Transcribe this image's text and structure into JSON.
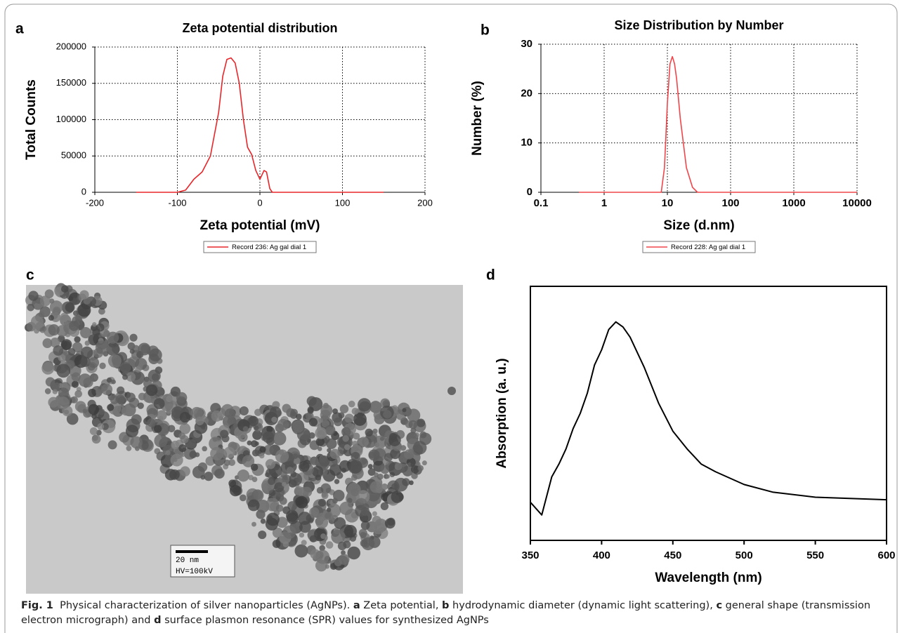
{
  "figure": {
    "panel_labels": [
      "a",
      "b",
      "c",
      "d"
    ],
    "micrograph": {
      "scale_bar": "20 nm",
      "voltage": "HV=100kV"
    },
    "caption": {
      "figure_number": "Fig. 1",
      "parts": [
        "Physical characterization of silver nanoparticles (AgNPs).",
        "Zeta potential,",
        "hydrodynamic diameter (dynamic light scattering),",
        "general shape (transmission electron micrograph) and",
        "surface plasmon resonance (SPR) values for synthesized AgNPs"
      ]
    }
  },
  "chart_data": [
    {
      "type": "line",
      "title": "Zeta potential distribution",
      "xlabel": "Zeta potential (mV)",
      "ylabel": "Total Counts",
      "x": [
        -150,
        -100,
        -90,
        -80,
        -70,
        -60,
        -50,
        -45,
        -40,
        -35,
        -30,
        -25,
        -20,
        -15,
        -10,
        -5,
        0,
        5,
        8,
        12,
        15,
        100,
        150
      ],
      "series": [
        {
          "name": "Record 236: Ag gal dial 1",
          "color": "#e8262a",
          "values": [
            0,
            0,
            3000,
            18000,
            28000,
            50000,
            110000,
            160000,
            183000,
            185000,
            178000,
            150000,
            100000,
            62000,
            52000,
            30000,
            18000,
            30000,
            28000,
            5000,
            0,
            0,
            0
          ]
        }
      ],
      "xlim": [
        -200,
        200
      ],
      "xticks": [
        -200,
        -100,
        0,
        100,
        200
      ],
      "ylim": [
        0,
        200000
      ],
      "yticks": [
        0,
        50000,
        100000,
        150000,
        200000
      ],
      "grid": true,
      "legend": "below"
    },
    {
      "type": "line",
      "title": "Size Distribution by Number",
      "xlabel": "Size (d.nm)",
      "ylabel": "Number (%)",
      "x": [
        0.4,
        5,
        8,
        9,
        10,
        11,
        12,
        13,
        14,
        16,
        20,
        25,
        30,
        100,
        1000,
        10000
      ],
      "series": [
        {
          "name": "Record 228: Ag gal dial 1",
          "color": "#f0454a",
          "values": [
            0,
            0,
            0,
            5,
            18,
            26,
            27.5,
            26,
            23,
            15,
            5,
            1,
            0,
            0,
            0,
            0
          ]
        }
      ],
      "xscale": "log",
      "xlim": [
        0.1,
        10000
      ],
      "xticks": [
        0.1,
        1,
        10,
        100,
        1000,
        10000
      ],
      "ylim": [
        0,
        30
      ],
      "yticks": [
        0,
        10,
        20,
        30
      ],
      "grid": true,
      "legend": "below"
    },
    {
      "type": "line",
      "xlabel": "Wavelength (nm)",
      "ylabel": "Absorption (a. u.)",
      "x": [
        350,
        358,
        365,
        370,
        375,
        380,
        385,
        390,
        395,
        400,
        405,
        410,
        415,
        420,
        430,
        440,
        450,
        460,
        470,
        480,
        500,
        520,
        550,
        600
      ],
      "series": [
        {
          "color": "#000000",
          "values": [
            0.15,
            0.1,
            0.25,
            0.3,
            0.36,
            0.44,
            0.5,
            0.58,
            0.69,
            0.75,
            0.83,
            0.86,
            0.84,
            0.8,
            0.68,
            0.54,
            0.43,
            0.36,
            0.3,
            0.27,
            0.22,
            0.19,
            0.17,
            0.16
          ]
        }
      ],
      "xlim": [
        350,
        600
      ],
      "xticks": [
        350,
        400,
        450,
        500,
        550,
        600
      ],
      "ylim": [
        0,
        1
      ],
      "grid": false
    }
  ]
}
